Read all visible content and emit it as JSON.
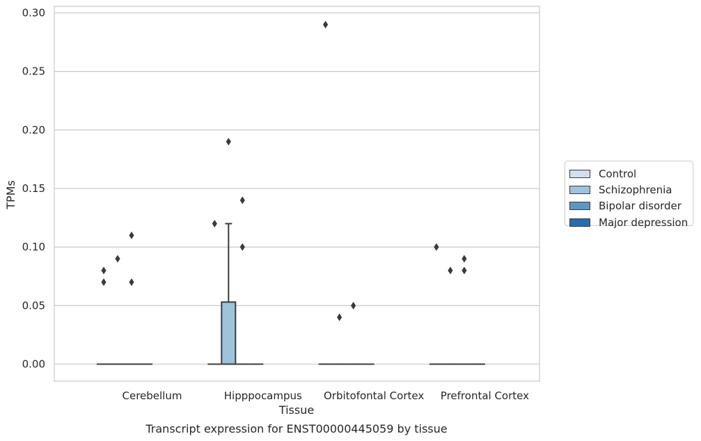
{
  "chart_data": {
    "type": "box",
    "title": "Transcript expression for ENST00000445059 by tissue",
    "xlabel": "Tissue",
    "ylabel": "TPMs",
    "ylim": [
      -0.014,
      0.305
    ],
    "yticks": [
      "0.00",
      "0.05",
      "0.10",
      "0.15",
      "0.20",
      "0.25",
      "0.30"
    ],
    "ytick_values": [
      0,
      0.05,
      0.1,
      0.15,
      0.2,
      0.25,
      0.3
    ],
    "grid": "horizontal",
    "legend_placement": "right",
    "categories": [
      "Cerebellum",
      "Hipppocampus",
      "Orbitofontal Cortex",
      "Prefrontal Cortex"
    ],
    "series": [
      {
        "name": "Control",
        "color": "#d0e0ee",
        "boxes": [
          {
            "q1": 0,
            "median": 0,
            "q3": 0,
            "whisker_low": 0,
            "whisker_high": 0,
            "outliers": [
              0.08,
              0.07
            ]
          },
          {
            "q1": 0,
            "median": 0,
            "q3": 0,
            "whisker_low": 0,
            "whisker_high": 0,
            "outliers": [
              0.12
            ]
          },
          {
            "q1": 0,
            "median": 0,
            "q3": 0,
            "whisker_low": 0,
            "whisker_high": 0,
            "outliers": [
              0.29
            ]
          },
          {
            "q1": 0,
            "median": 0,
            "q3": 0,
            "whisker_low": 0,
            "whisker_high": 0,
            "outliers": [
              0.1
            ]
          }
        ]
      },
      {
        "name": "Schizophrenia",
        "color": "#9dc3dd",
        "boxes": [
          {
            "q1": 0,
            "median": 0,
            "q3": 0,
            "whisker_low": 0,
            "whisker_high": 0,
            "outliers": [
              0.09
            ]
          },
          {
            "q1": 0,
            "median": 0,
            "q3": 0.053,
            "whisker_low": 0,
            "whisker_high": 0.12,
            "outliers": [
              0.19
            ]
          },
          {
            "q1": 0,
            "median": 0,
            "q3": 0,
            "whisker_low": 0,
            "whisker_high": 0,
            "outliers": [
              0.04
            ]
          },
          {
            "q1": 0,
            "median": 0,
            "q3": 0,
            "whisker_low": 0,
            "whisker_high": 0,
            "outliers": [
              0.08
            ]
          }
        ]
      },
      {
        "name": "Bipolar disorder",
        "color": "#5a97c5",
        "boxes": [
          {
            "q1": 0,
            "median": 0,
            "q3": 0,
            "whisker_low": 0,
            "whisker_high": 0,
            "outliers": [
              0.11,
              0.07
            ]
          },
          {
            "q1": 0,
            "median": 0,
            "q3": 0,
            "whisker_low": 0,
            "whisker_high": 0,
            "outliers": [
              0.14,
              0.1
            ]
          },
          {
            "q1": 0,
            "median": 0,
            "q3": 0,
            "whisker_low": 0,
            "whisker_high": 0,
            "outliers": [
              0.05
            ]
          },
          {
            "q1": 0,
            "median": 0,
            "q3": 0,
            "whisker_low": 0,
            "whisker_high": 0,
            "outliers": [
              0.09,
              0.08
            ]
          }
        ]
      },
      {
        "name": "Major depression",
        "color": "#2a6cad",
        "boxes": [
          {
            "q1": 0,
            "median": 0,
            "q3": 0,
            "whisker_low": 0,
            "whisker_high": 0,
            "outliers": []
          },
          {
            "q1": 0,
            "median": 0,
            "q3": 0,
            "whisker_low": 0,
            "whisker_high": 0,
            "outliers": []
          },
          {
            "q1": 0,
            "median": 0,
            "q3": 0,
            "whisker_low": 0,
            "whisker_high": 0,
            "outliers": []
          },
          {
            "q1": 0,
            "median": 0,
            "q3": 0,
            "whisker_low": 0,
            "whisker_high": 0,
            "outliers": []
          }
        ]
      }
    ],
    "colors": {
      "grid": "#cccccc",
      "axis": "#cccccc",
      "stroke": "#3b3b3b",
      "text": "#262626"
    }
  }
}
